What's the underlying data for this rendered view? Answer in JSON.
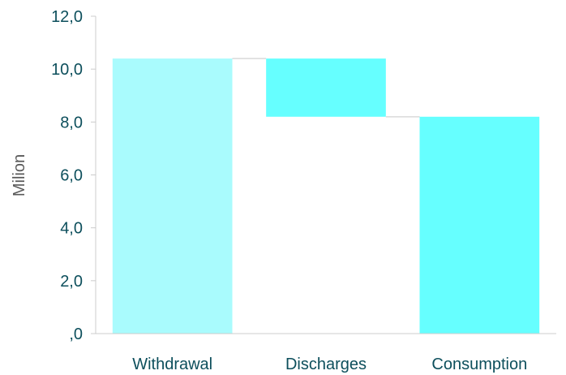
{
  "chart_data": {
    "type": "bar",
    "subtype": "waterfall",
    "categories": [
      "Withdrawal",
      "Discharges",
      "Consumption"
    ],
    "bars": [
      {
        "category": "Withdrawal",
        "low": 0,
        "high": 10.4,
        "color": "#a9fbfd"
      },
      {
        "category": "Discharges",
        "low": 8.2,
        "high": 10.4,
        "color": "#66ffff"
      },
      {
        "category": "Consumption",
        "low": 0,
        "high": 8.2,
        "color": "#66ffff"
      }
    ],
    "ylabel": "Milion",
    "ylim": [
      0,
      12
    ],
    "yticks": [
      0,
      2,
      4,
      6,
      8,
      10,
      12
    ],
    "ytick_labels": [
      ",0",
      "2,0",
      "4,0",
      "6,0",
      "8,0",
      "10,0",
      "12,0"
    ],
    "grid": false,
    "connector_lines": true,
    "colors": {
      "axis": "#cccccc",
      "tick_text": "#0d4f5c",
      "label_text": "#595959",
      "connector": "#d9d9d9"
    }
  }
}
